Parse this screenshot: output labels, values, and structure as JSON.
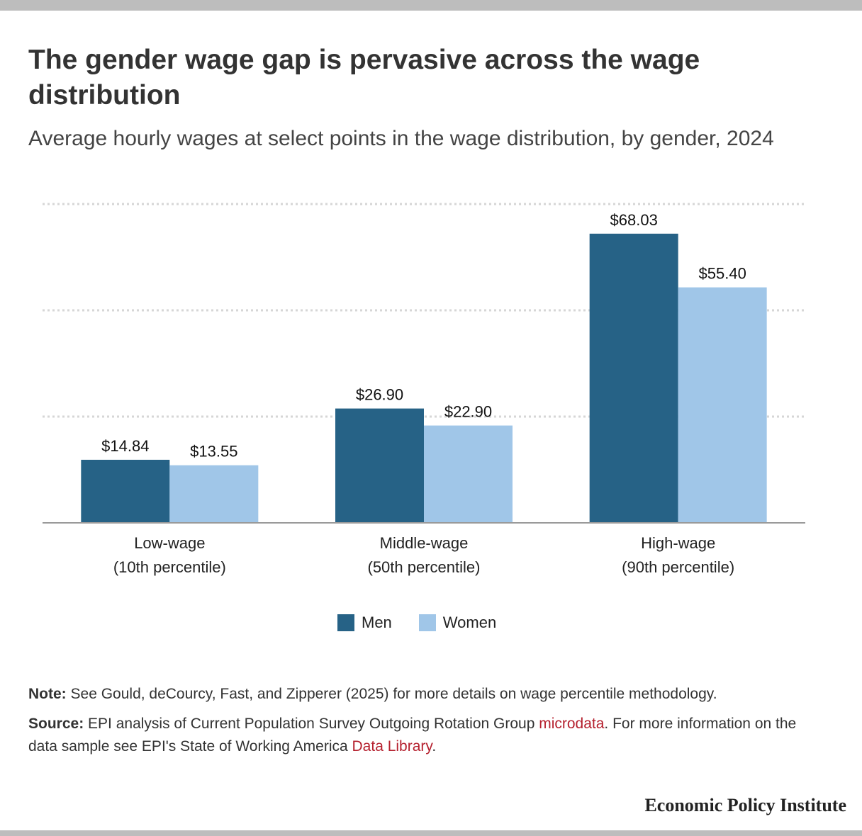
{
  "title": "The gender wage gap is pervasive across the wage distribution",
  "subtitle": "Average hourly wages at select points in the wage distribution, by gender, 2024",
  "chart_data": {
    "type": "bar",
    "categories": [
      [
        "Low-wage",
        "(10th percentile)"
      ],
      [
        "Middle-wage",
        "(50th percentile)"
      ],
      [
        "High-wage",
        "(90th percentile)"
      ]
    ],
    "series": [
      {
        "name": "Men",
        "values": [
          14.84,
          26.9,
          68.03
        ],
        "labels": [
          "$14.84",
          "$26.90",
          "$68.03"
        ],
        "color": "#266286"
      },
      {
        "name": "Women",
        "values": [
          13.55,
          22.9,
          55.4
        ],
        "labels": [
          "$13.55",
          "$22.90",
          "$55.40"
        ],
        "color": "#a0c6e8"
      }
    ],
    "ylim": [
      0,
      75
    ],
    "gridlines": [
      0,
      25,
      50,
      75
    ],
    "grid": true,
    "legend_position": "bottom-center"
  },
  "legend": {
    "men": "Men",
    "women": "Women"
  },
  "note": {
    "label": "Note:",
    "text": " See Gould, deCourcy, Fast, and Zipperer (2025) for more details on wage percentile methodology."
  },
  "source": {
    "label": "Source:",
    "text_1": " EPI analysis of Current Population Survey Outgoing Rotation Group ",
    "link_1": "microdata",
    "text_2": ". For more information on the data sample see EPI's State of Working America ",
    "link_2": "Data Library",
    "text_3": "."
  },
  "brand": "Economic Policy Institute",
  "colors": {
    "men": "#266286",
    "women": "#a0c6e8",
    "link": "#b5202e"
  }
}
